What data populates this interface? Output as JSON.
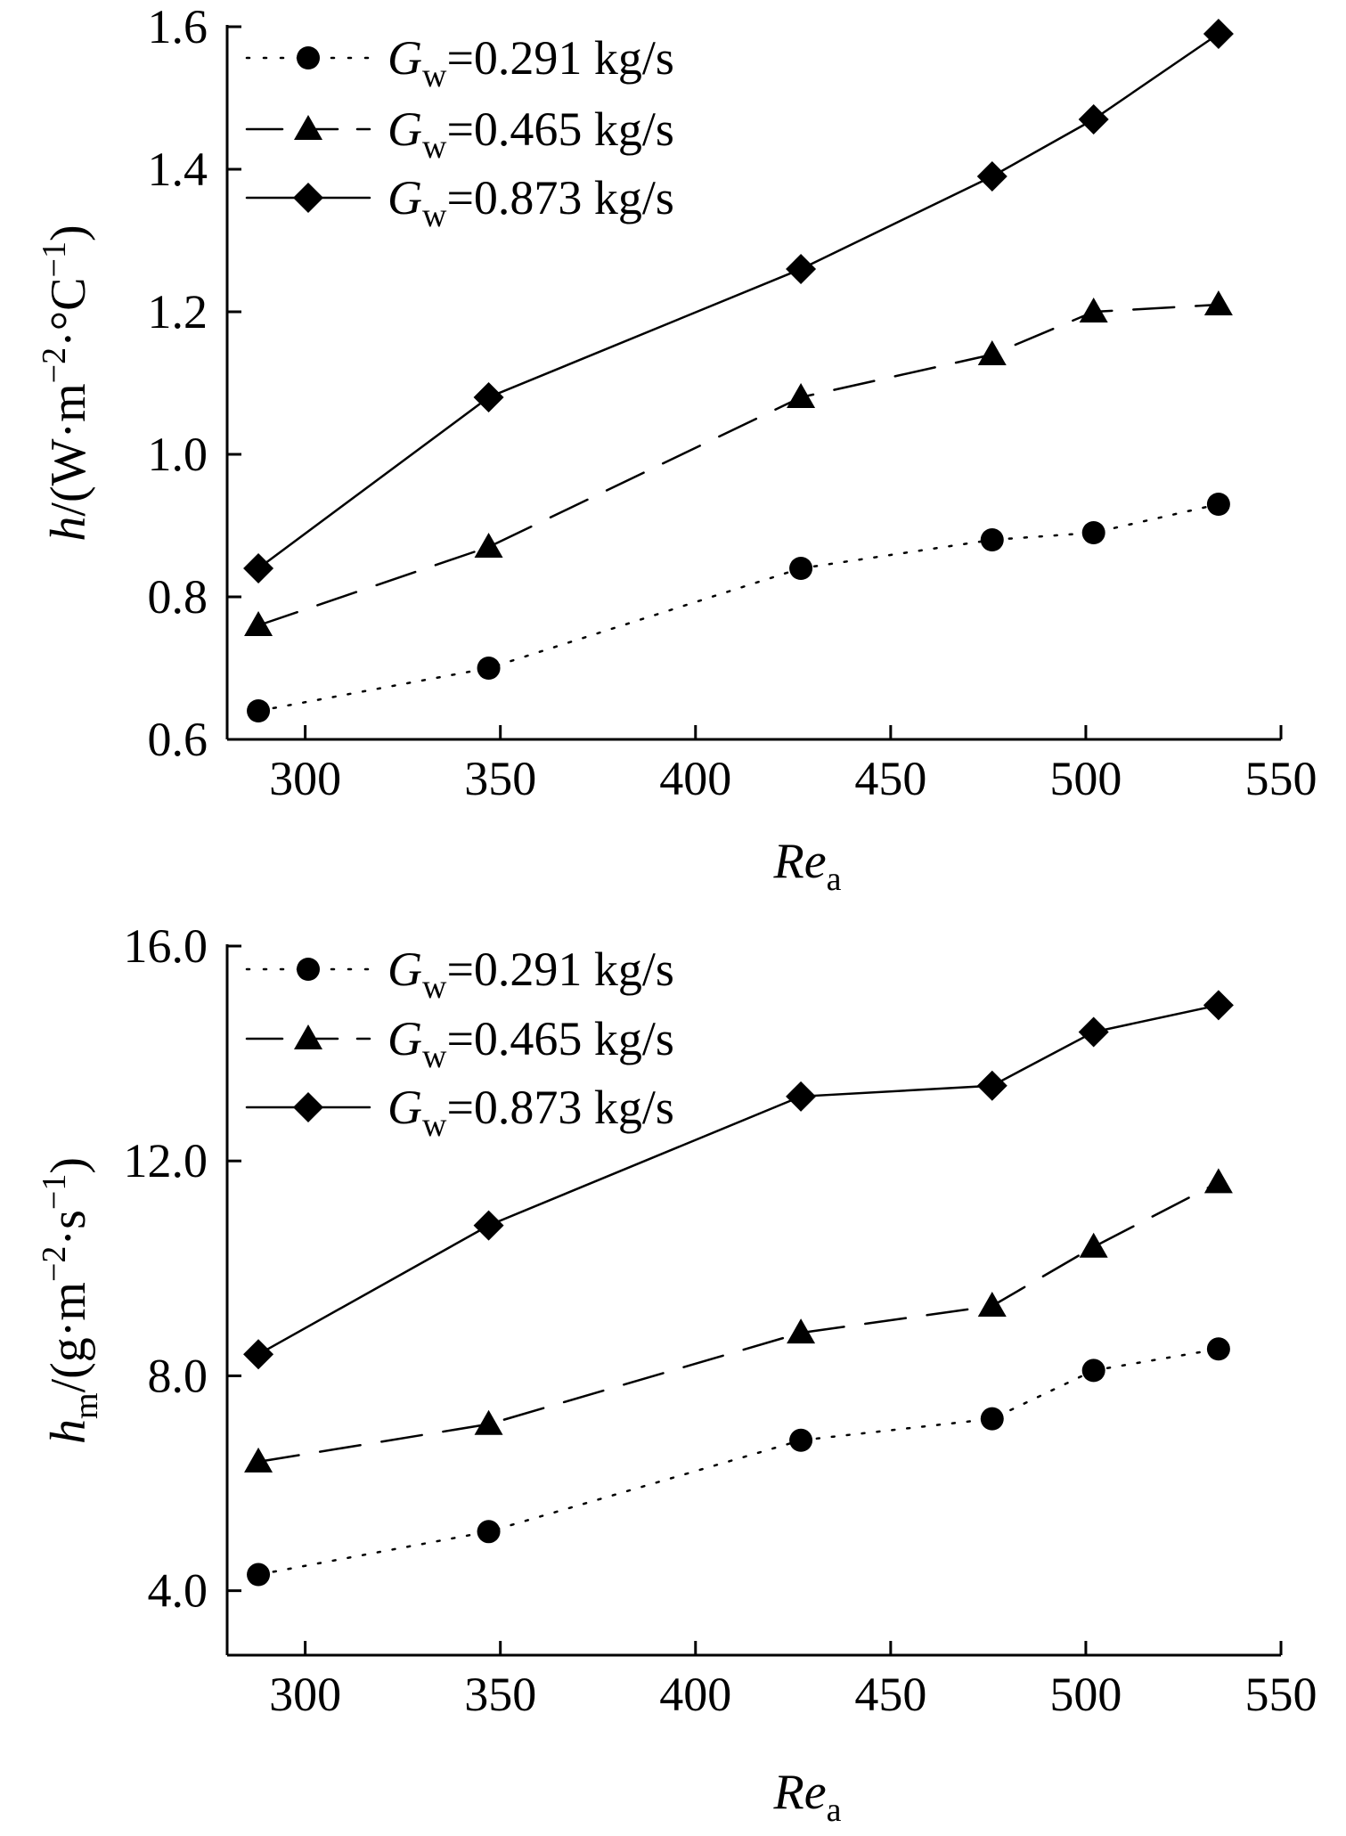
{
  "figure": {
    "charts": [
      {
        "type": "line",
        "xlabel": {
          "main": "Re",
          "sub": "a"
        },
        "ylabel": {
          "main": "h",
          "sub": "",
          "unit_prefix": "/(W·m",
          "unit_exp1": "−2",
          "unit_mid": "·°C",
          "unit_exp2": "−1",
          "unit_suffix": ")"
        },
        "xlim": [
          280,
          550
        ],
        "ylim": [
          0.6,
          1.6
        ],
        "xticks": [
          300,
          350,
          400,
          450,
          500,
          550
        ],
        "yticks": [
          0.6,
          0.8,
          1.0,
          1.2,
          1.4,
          1.6
        ],
        "xtick_labels": [
          "300",
          "350",
          "400",
          "450",
          "500",
          "550"
        ],
        "ytick_labels": [
          "0.6",
          "0.8",
          "1.0",
          "1.2",
          "1.4",
          "1.6"
        ],
        "legend_position": "top-left",
        "series": [
          {
            "name": "G_w=0.291 kg/s",
            "label_main": "G",
            "label_sub": "w",
            "label_rest": "=0.291 kg/s",
            "marker": "circle",
            "line": "dotted",
            "x": [
              288,
              347,
              427,
              476,
              502,
              534
            ],
            "y": [
              0.64,
              0.7,
              0.84,
              0.88,
              0.89,
              0.93
            ]
          },
          {
            "name": "G_w=0.465 kg/s",
            "label_main": "G",
            "label_sub": "w",
            "label_rest": "=0.465 kg/s",
            "marker": "triangle",
            "line": "dashed",
            "x": [
              288,
              347,
              427,
              476,
              502,
              534
            ],
            "y": [
              0.76,
              0.87,
              1.08,
              1.14,
              1.2,
              1.21
            ]
          },
          {
            "name": "G_w=0.873 kg/s",
            "label_main": "G",
            "label_sub": "w",
            "label_rest": "=0.873 kg/s",
            "marker": "diamond",
            "line": "solid",
            "x": [
              288,
              347,
              427,
              476,
              502,
              534
            ],
            "y": [
              0.84,
              1.08,
              1.26,
              1.39,
              1.47,
              1.59
            ]
          }
        ]
      },
      {
        "type": "line",
        "xlabel": {
          "main": "Re",
          "sub": "a"
        },
        "ylabel": {
          "main": "h",
          "sub": "m",
          "unit_prefix": "/(g·m",
          "unit_exp1": "−2",
          "unit_mid": "·s",
          "unit_exp2": "−1",
          "unit_suffix": ")"
        },
        "xlim": [
          280,
          550
        ],
        "ylim": [
          2.8,
          16.0
        ],
        "xticks": [
          300,
          350,
          400,
          450,
          500,
          550
        ],
        "yticks": [
          4.0,
          8.0,
          12.0,
          16.0
        ],
        "xtick_labels": [
          "300",
          "350",
          "400",
          "450",
          "500",
          "550"
        ],
        "ytick_labels": [
          "4.0",
          "8.0",
          "12.0",
          "16.0"
        ],
        "legend_position": "top-left",
        "series": [
          {
            "name": "G_w=0.291 kg/s",
            "label_main": "G",
            "label_sub": "w",
            "label_rest": "=0.291 kg/s",
            "marker": "circle",
            "line": "dotted",
            "x": [
              288,
              347,
              427,
              476,
              502,
              534
            ],
            "y": [
              4.3,
              5.1,
              6.8,
              7.2,
              8.1,
              8.5
            ]
          },
          {
            "name": "G_w=0.465 kg/s",
            "label_main": "G",
            "label_sub": "w",
            "label_rest": "=0.465 kg/s",
            "marker": "triangle",
            "line": "dashed",
            "x": [
              288,
              347,
              427,
              476,
              502,
              534
            ],
            "y": [
              6.4,
              7.1,
              8.8,
              9.3,
              10.4,
              11.6
            ]
          },
          {
            "name": "G_w=0.873 kg/s",
            "label_main": "G",
            "label_sub": "w",
            "label_rest": "=0.873 kg/s",
            "marker": "diamond",
            "line": "solid",
            "x": [
              288,
              347,
              427,
              476,
              502,
              534
            ],
            "y": [
              8.4,
              10.8,
              13.2,
              13.4,
              14.4,
              14.9
            ]
          }
        ]
      }
    ]
  },
  "chart_data": [
    {
      "type": "line",
      "xlabel": "Re_a",
      "ylabel": "h/(W·m−2·°C−1)",
      "x": [
        288,
        347,
        427,
        476,
        502,
        534
      ],
      "xlim": [
        280,
        550
      ],
      "ylim": [
        0.6,
        1.6
      ],
      "series": [
        {
          "name": "G_w=0.291 kg/s",
          "values": [
            0.64,
            0.7,
            0.84,
            0.88,
            0.89,
            0.93
          ]
        },
        {
          "name": "G_w=0.465 kg/s",
          "values": [
            0.76,
            0.87,
            1.08,
            1.14,
            1.2,
            1.21
          ]
        },
        {
          "name": "G_w=0.873 kg/s",
          "values": [
            0.84,
            1.08,
            1.26,
            1.39,
            1.47,
            1.59
          ]
        }
      ],
      "grid": false,
      "legend": "top-left"
    },
    {
      "type": "line",
      "xlabel": "Re_a",
      "ylabel": "h_m/(g·m−2·s−1)",
      "x": [
        288,
        347,
        427,
        476,
        502,
        534
      ],
      "xlim": [
        280,
        550
      ],
      "ylim": [
        2.8,
        16.0
      ],
      "series": [
        {
          "name": "G_w=0.291 kg/s",
          "values": [
            4.3,
            5.1,
            6.8,
            7.2,
            8.1,
            8.5
          ]
        },
        {
          "name": "G_w=0.465 kg/s",
          "values": [
            6.4,
            7.1,
            8.8,
            9.3,
            10.4,
            11.6
          ]
        },
        {
          "name": "G_w=0.873 kg/s",
          "values": [
            8.4,
            10.8,
            13.2,
            13.4,
            14.4,
            14.9
          ]
        }
      ],
      "grid": false,
      "legend": "top-left"
    }
  ]
}
